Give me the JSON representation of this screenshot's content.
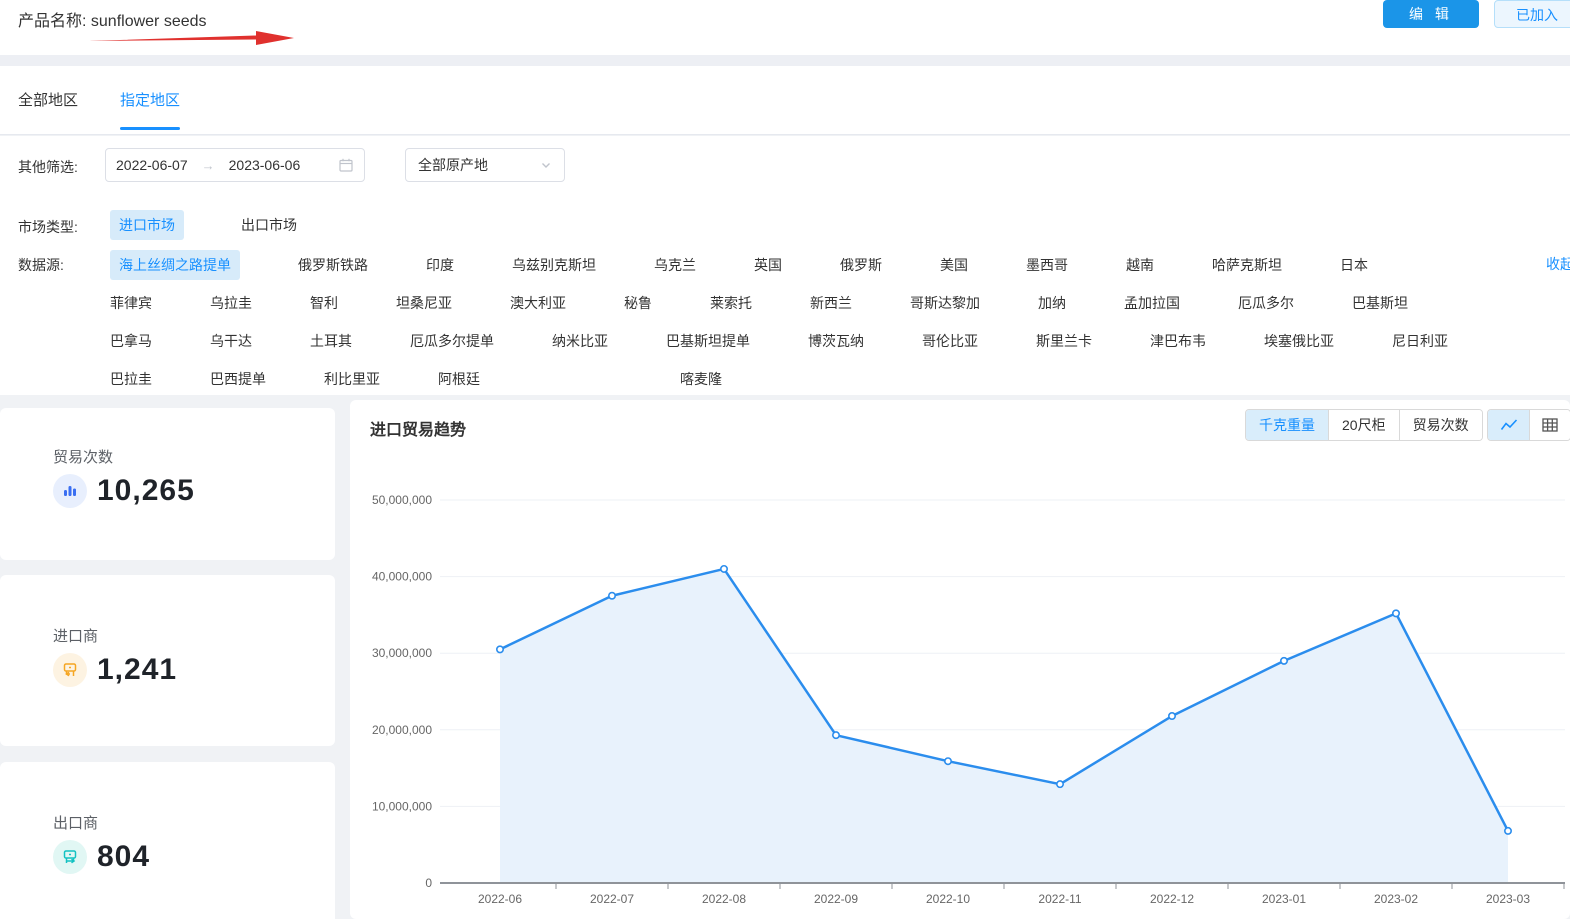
{
  "colors": {
    "accent": "#1890ff",
    "line": "#2b8ded",
    "area_fill": "#e8f2fc",
    "selected_tag_bg": "#d7ebfa",
    "page_bg": "#f0f2f5",
    "trade_icon": "#3a6ff2",
    "importer_icon": "#f5a623",
    "exporter_icon": "#13c2c2"
  },
  "header": {
    "product_label": "产品名称: sunflower seeds",
    "edit_button": "编 辑",
    "added_button": "已加入"
  },
  "tabs": [
    {
      "label": "全部地区",
      "active": false
    },
    {
      "label": "指定地区",
      "active": true
    }
  ],
  "filters": {
    "other_label": "其他筛选:",
    "date_start": "2022-06-07",
    "date_end": "2023-06-06",
    "origin_select": "全部原产地",
    "market_label": "市场类型:",
    "market_options": [
      {
        "label": "进口市场",
        "selected": true
      },
      {
        "label": "出口市场",
        "selected": false
      }
    ],
    "datasource_label": "数据源:",
    "datasource_selected": "海上丝绸之路提单",
    "collapse_link": "收起",
    "datasource_rows": [
      [
        "海上丝绸之路提单",
        "俄罗斯铁路",
        "印度",
        "乌兹别克斯坦",
        "乌克兰",
        "英国",
        "俄罗斯",
        "美国",
        "墨西哥",
        "越南",
        "哈萨克斯坦",
        "日本"
      ],
      [
        "菲律宾",
        "乌拉圭",
        "智利",
        "坦桑尼亚",
        "澳大利亚",
        "秘鲁",
        "莱索托",
        "新西兰",
        "哥斯达黎加",
        "加纳",
        "孟加拉国",
        "厄瓜多尔",
        "巴基斯坦"
      ],
      [
        "巴拿马",
        "乌干达",
        "土耳其",
        "厄瓜多尔提单",
        "纳米比亚",
        "巴基斯坦提单",
        "博茨瓦纳",
        "哥伦比亚",
        "斯里兰卡",
        "津巴布韦",
        "埃塞俄比亚",
        "尼日利亚"
      ],
      [
        "巴拉圭",
        "巴西提单",
        "利比里亚",
        "阿根廷",
        "喀麦隆"
      ]
    ]
  },
  "stats": [
    {
      "label": "贸易次数",
      "value": "10,265",
      "icon": "trade-count-bar-chart-icon"
    },
    {
      "label": "进口商",
      "value": "1,241",
      "icon": "importer-icon"
    },
    {
      "label": "出口商",
      "value": "804",
      "icon": "exporter-icon"
    }
  ],
  "trend": {
    "title": "进口贸易趋势",
    "unit_buttons": [
      {
        "label": "千克重量",
        "selected": true
      },
      {
        "label": "20尺柜",
        "selected": false
      },
      {
        "label": "贸易次数",
        "selected": false
      }
    ],
    "view_toggle": [
      {
        "icon": "line-chart-icon",
        "selected": true
      },
      {
        "icon": "table-icon",
        "selected": false
      }
    ]
  },
  "chart_data": {
    "type": "area",
    "title": "进口贸易趋势",
    "x": [
      "2022-06",
      "2022-07",
      "2022-08",
      "2022-09",
      "2022-10",
      "2022-11",
      "2022-12",
      "2023-01",
      "2023-02",
      "2023-03"
    ],
    "series": [
      {
        "name": "千克重量",
        "values": [
          30500000,
          37500000,
          41000000,
          19300000,
          15900000,
          12900000,
          21800000,
          29000000,
          35200000,
          6800000
        ]
      }
    ],
    "ylim": [
      0,
      50000000
    ],
    "ytick_step": 10000000,
    "grid": true,
    "legend": "none"
  }
}
